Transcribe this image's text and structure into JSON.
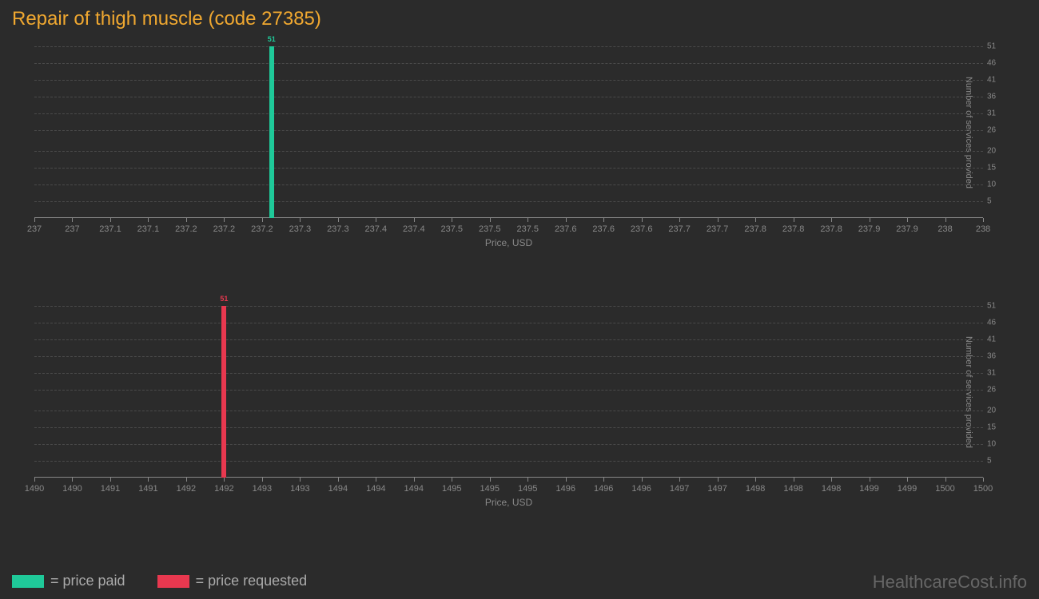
{
  "title": "Repair of thigh muscle (code 27385)",
  "watermark": "HealthcareCost.info",
  "colors": {
    "background": "#2b2b2b",
    "title": "#f0a830",
    "grid": "#4a4a4a",
    "axis": "#888888",
    "text": "#888888",
    "price_paid": "#1fc999",
    "price_requested": "#e8384f"
  },
  "y_axis": {
    "label": "Number of services provided",
    "ticks": [
      5,
      10,
      15,
      20,
      26,
      31,
      36,
      41,
      46,
      51
    ],
    "min": 0,
    "max": 51
  },
  "chart1": {
    "x_label": "Price, USD",
    "x_min": 237,
    "x_max": 238,
    "x_ticks": [
      "237",
      "237",
      "237.1",
      "237.1",
      "237.2",
      "237.2",
      "237.2",
      "237.3",
      "237.3",
      "237.4",
      "237.4",
      "237.5",
      "237.5",
      "237.5",
      "237.6",
      "237.6",
      "237.6",
      "237.7",
      "237.7",
      "237.8",
      "237.8",
      "237.8",
      "237.9",
      "237.9",
      "238",
      "238"
    ],
    "bar": {
      "x": 237.25,
      "value": 51,
      "color": "#1fc999",
      "label": "51"
    }
  },
  "chart2": {
    "x_label": "Price, USD",
    "x_min": 1490,
    "x_max": 1500,
    "x_ticks": [
      "1490",
      "1490",
      "1491",
      "1491",
      "1492",
      "1492",
      "1493",
      "1493",
      "1494",
      "1494",
      "1494",
      "1495",
      "1495",
      "1495",
      "1496",
      "1496",
      "1496",
      "1497",
      "1497",
      "1498",
      "1498",
      "1498",
      "1499",
      "1499",
      "1500",
      "1500"
    ],
    "bar": {
      "x": 1492,
      "value": 51,
      "color": "#e8384f",
      "label": "51"
    }
  },
  "legend": {
    "items": [
      {
        "color": "#1fc999",
        "label": "= price paid"
      },
      {
        "color": "#e8384f",
        "label": "= price requested"
      }
    ]
  }
}
